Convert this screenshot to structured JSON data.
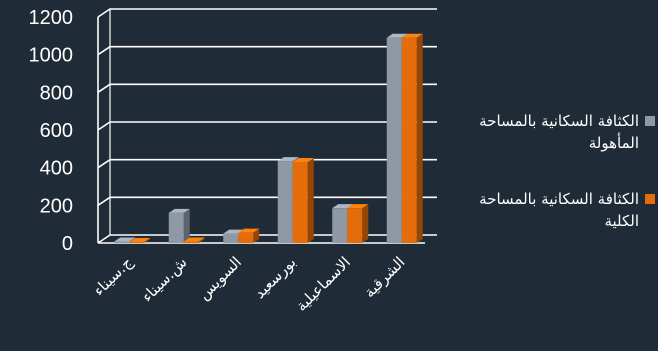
{
  "chart_data": {
    "type": "bar",
    "categories": [
      "ج.سيناء",
      "ش.سيناء",
      "السويس",
      "بورسعيد",
      "الاسماعيلية",
      "الشرقية"
    ],
    "series": [
      {
        "name": "الكثافة السكانية بالمساحة المأهولة",
        "color": "#8e99a5",
        "values": [
          8,
          160,
          50,
          435,
          185,
          1090
        ]
      },
      {
        "name": "الكثافة السكانية بالمساحة الكلية",
        "color": "#e46c0a",
        "values": [
          5,
          8,
          55,
          430,
          185,
          1090
        ]
      }
    ],
    "yticks": [
      "0",
      "200",
      "400",
      "600",
      "800",
      "1000",
      "1200"
    ],
    "ylim": [
      0,
      1200
    ],
    "grid": true,
    "legend_position": "right"
  }
}
